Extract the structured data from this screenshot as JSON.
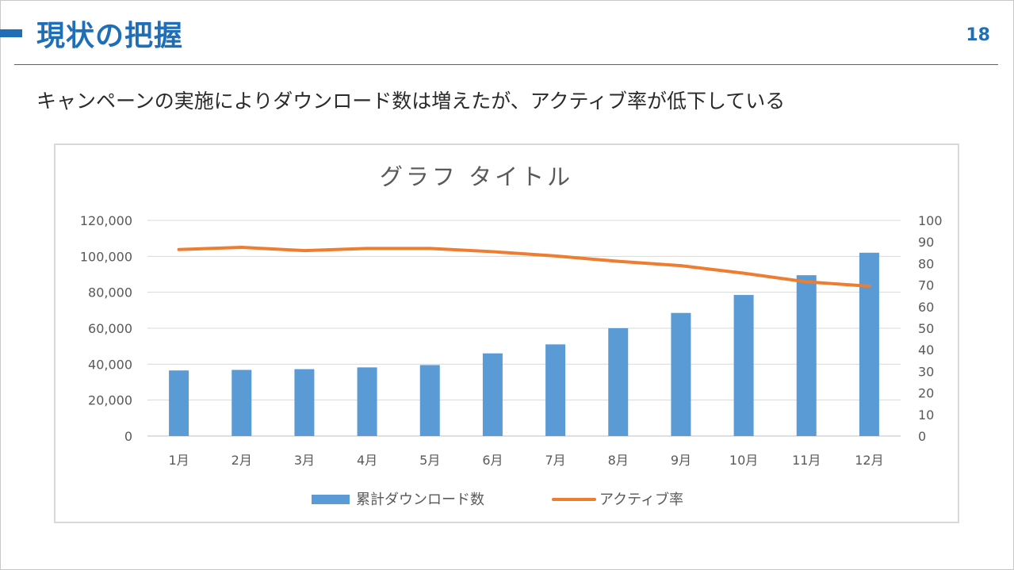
{
  "slide": {
    "title": "現状の把握",
    "page_number": "18",
    "subtitle": "キャンペーンの実施によりダウンロード数は増えたが、アクティブ率が低下している",
    "accent_color": "#1f6fb8"
  },
  "chart_data": {
    "type": "bar",
    "title": "グラフ タイトル",
    "categories": [
      "1月",
      "2月",
      "3月",
      "4月",
      "5月",
      "6月",
      "7月",
      "8月",
      "9月",
      "10月",
      "11月",
      "12月"
    ],
    "series": [
      {
        "name": "累計ダウンロード数",
        "type": "bar",
        "axis": "left",
        "color": "#5b9bd5",
        "values": [
          36500,
          36800,
          37200,
          38200,
          39500,
          46000,
          51000,
          60000,
          68500,
          78500,
          89500,
          102000
        ]
      },
      {
        "name": "アクティブ率",
        "type": "line",
        "axis": "right",
        "color": "#ed7d31",
        "values": [
          86.5,
          87.5,
          86,
          87,
          87,
          85.5,
          83.5,
          81,
          79,
          75.5,
          71.5,
          69.5
        ]
      }
    ],
    "y_left": {
      "lim": [
        0,
        120000
      ],
      "ticks": [
        0,
        20000,
        40000,
        60000,
        80000,
        100000,
        120000
      ],
      "tick_labels": [
        "0",
        "20,000",
        "40,000",
        "60,000",
        "80,000",
        "100,000",
        "120,000"
      ]
    },
    "y_right": {
      "lim": [
        0,
        100
      ],
      "ticks": [
        0,
        10,
        20,
        30,
        40,
        50,
        60,
        70,
        80,
        90,
        100
      ],
      "tick_labels": [
        "0",
        "10",
        "20",
        "30",
        "40",
        "50",
        "60",
        "70",
        "80",
        "90",
        "100"
      ]
    },
    "grid": true,
    "legend_position": "bottom"
  }
}
